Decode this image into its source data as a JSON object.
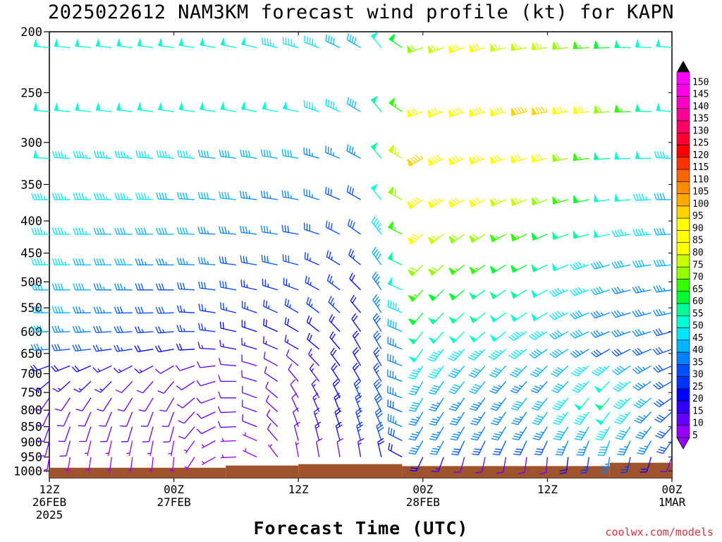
{
  "title": "2025022612 NAM3KM forecast wind profile (kt) for KAPN",
  "credit": "coolwx.com/models",
  "chart_data": {
    "type": "wind-barb-profile",
    "title": "2025022612 NAM3KM forecast wind profile (kt) for KAPN",
    "xlabel": "Forecast Time (UTC)",
    "ylabel": "",
    "y_scale": "log",
    "y_ticks": [
      200,
      250,
      300,
      350,
      400,
      450,
      500,
      550,
      600,
      650,
      700,
      750,
      800,
      850,
      900,
      950,
      1000
    ],
    "y_range_hpa": [
      200,
      1025
    ],
    "x_range_hours": [
      0,
      60
    ],
    "x_ticks": [
      {
        "hour": 0,
        "lines": [
          "12Z",
          "26FEB",
          "2025"
        ]
      },
      {
        "hour": 12,
        "lines": [
          "00Z",
          "27FEB"
        ]
      },
      {
        "hour": 24,
        "lines": [
          "12Z"
        ]
      },
      {
        "hour": 36,
        "lines": [
          "00Z",
          "28FEB"
        ]
      },
      {
        "hour": 48,
        "lines": [
          "12Z"
        ]
      },
      {
        "hour": 60,
        "lines": [
          "00Z",
          "1MAR"
        ]
      }
    ],
    "levels_hpa": [
      212,
      268,
      318,
      370,
      420,
      470,
      515,
      560,
      600,
      640,
      680,
      720,
      765,
      805,
      850,
      895,
      950
    ],
    "times_hours": [
      0,
      2,
      4,
      6,
      8,
      10,
      12,
      14,
      16,
      18,
      20,
      22,
      24,
      26,
      28,
      30,
      32,
      34,
      36,
      38,
      40,
      42,
      44,
      46,
      48,
      50,
      52,
      54,
      56,
      58,
      60
    ],
    "speed_anchor_times": [
      0,
      12,
      24,
      30,
      33,
      36,
      40,
      48,
      54,
      60
    ],
    "speed_anchor_values_kt": [
      [
        50,
        52,
        46,
        38,
        55,
        68,
        78,
        76,
        58,
        48
      ],
      [
        50,
        52,
        48,
        40,
        60,
        80,
        88,
        94,
        72,
        50
      ],
      [
        48,
        44,
        38,
        34,
        65,
        95,
        85,
        78,
        55,
        45
      ],
      [
        46,
        42,
        35,
        30,
        60,
        92,
        80,
        70,
        52,
        42
      ],
      [
        44,
        40,
        32,
        28,
        55,
        78,
        70,
        62,
        48,
        40
      ],
      [
        44,
        35,
        28,
        24,
        48,
        72,
        65,
        56,
        42,
        38
      ],
      [
        42,
        30,
        26,
        22,
        42,
        64,
        58,
        52,
        38,
        36
      ],
      [
        40,
        28,
        24,
        22,
        38,
        58,
        54,
        48,
        36,
        34
      ],
      [
        38,
        24,
        20,
        22,
        34,
        54,
        50,
        45,
        34,
        32
      ],
      [
        34,
        18,
        16,
        22,
        32,
        48,
        46,
        42,
        32,
        30
      ],
      [
        22,
        12,
        12,
        22,
        30,
        44,
        42,
        38,
        45,
        30
      ],
      [
        15,
        10,
        10,
        22,
        30,
        40,
        38,
        36,
        52,
        28
      ],
      [
        12,
        8,
        10,
        24,
        30,
        38,
        36,
        38,
        55,
        30
      ],
      [
        10,
        8,
        10,
        26,
        30,
        36,
        35,
        38,
        52,
        30
      ],
      [
        10,
        8,
        10,
        26,
        32,
        36,
        34,
        36,
        45,
        32
      ],
      [
        8,
        6,
        8,
        24,
        30,
        34,
        32,
        30,
        40,
        30
      ],
      [
        5,
        4,
        5,
        15,
        20,
        22,
        12,
        10,
        35,
        10
      ]
    ],
    "dir_anchor_times": [
      0,
      12,
      24,
      30,
      33,
      36,
      40,
      48,
      54,
      60
    ],
    "dir_anchor_values_deg": [
      [
        275,
        278,
        285,
        300,
        330,
        250,
        250,
        262,
        268,
        275
      ],
      [
        275,
        278,
        282,
        300,
        330,
        250,
        250,
        258,
        265,
        275
      ],
      [
        272,
        275,
        280,
        298,
        330,
        240,
        245,
        255,
        265,
        272
      ],
      [
        270,
        272,
        280,
        300,
        330,
        235,
        240,
        250,
        262,
        270
      ],
      [
        270,
        270,
        280,
        305,
        330,
        230,
        235,
        248,
        258,
        268
      ],
      [
        270,
        270,
        285,
        310,
        330,
        225,
        232,
        245,
        255,
        265
      ],
      [
        270,
        270,
        290,
        315,
        330,
        222,
        230,
        242,
        252,
        262
      ],
      [
        270,
        268,
        300,
        320,
        330,
        220,
        228,
        240,
        250,
        258
      ],
      [
        268,
        265,
        300,
        325,
        330,
        218,
        225,
        238,
        248,
        255
      ],
      [
        265,
        260,
        300,
        330,
        330,
        215,
        222,
        235,
        240,
        250
      ],
      [
        250,
        240,
        310,
        330,
        330,
        212,
        220,
        225,
        230,
        245
      ],
      [
        230,
        220,
        320,
        330,
        330,
        210,
        218,
        222,
        225,
        240
      ],
      [
        215,
        210,
        330,
        335,
        330,
        210,
        215,
        218,
        220,
        235
      ],
      [
        205,
        200,
        335,
        340,
        332,
        210,
        212,
        215,
        215,
        228
      ],
      [
        200,
        195,
        340,
        342,
        335,
        210,
        210,
        212,
        210,
        222
      ],
      [
        195,
        190,
        345,
        345,
        340,
        210,
        205,
        205,
        200,
        215
      ],
      [
        190,
        185,
        350,
        350,
        345,
        205,
        195,
        185,
        190,
        200
      ]
    ],
    "terrain": {
      "color": "#a0522d",
      "surface_steps": [
        {
          "from_hour": 0,
          "to_hour": 17,
          "pressure_hpa": 988
        },
        {
          "from_hour": 17,
          "to_hour": 24,
          "pressure_hpa": 980
        },
        {
          "from_hour": 24,
          "to_hour": 34,
          "pressure_hpa": 975
        },
        {
          "from_hour": 34,
          "to_hour": 54,
          "pressure_hpa": 982
        },
        {
          "from_hour": 54,
          "to_hour": 60,
          "pressure_hpa": 970
        }
      ]
    },
    "colorbar": {
      "labels": [
        "150",
        "145",
        "140",
        "135",
        "130",
        "125",
        "120",
        "115",
        "110",
        "105",
        "100",
        "95",
        "90",
        "85",
        "80",
        "75",
        "70",
        "65",
        "60",
        "55",
        "50",
        "45",
        "40",
        "35",
        "30",
        "25",
        "20",
        "15",
        "10",
        "5"
      ],
      "colors": [
        "#ff00ff",
        "#ff00e6",
        "#ff00c8",
        "#ff0096",
        "#ff0064",
        "#ff0032",
        "#ff0000",
        "#ff3200",
        "#ff6400",
        "#ff8c00",
        "#ffaa00",
        "#ffd200",
        "#ffff00",
        "#ffff00",
        "#ffff00",
        "#c8ff00",
        "#96ff00",
        "#32ff00",
        "#00ff32",
        "#00ff96",
        "#00ffd2",
        "#00e6ff",
        "#00b4ff",
        "#0082ff",
        "#0050ff",
        "#0032ff",
        "#0000ff",
        "#3200ff",
        "#6400ff",
        "#9600ff"
      ]
    }
  }
}
